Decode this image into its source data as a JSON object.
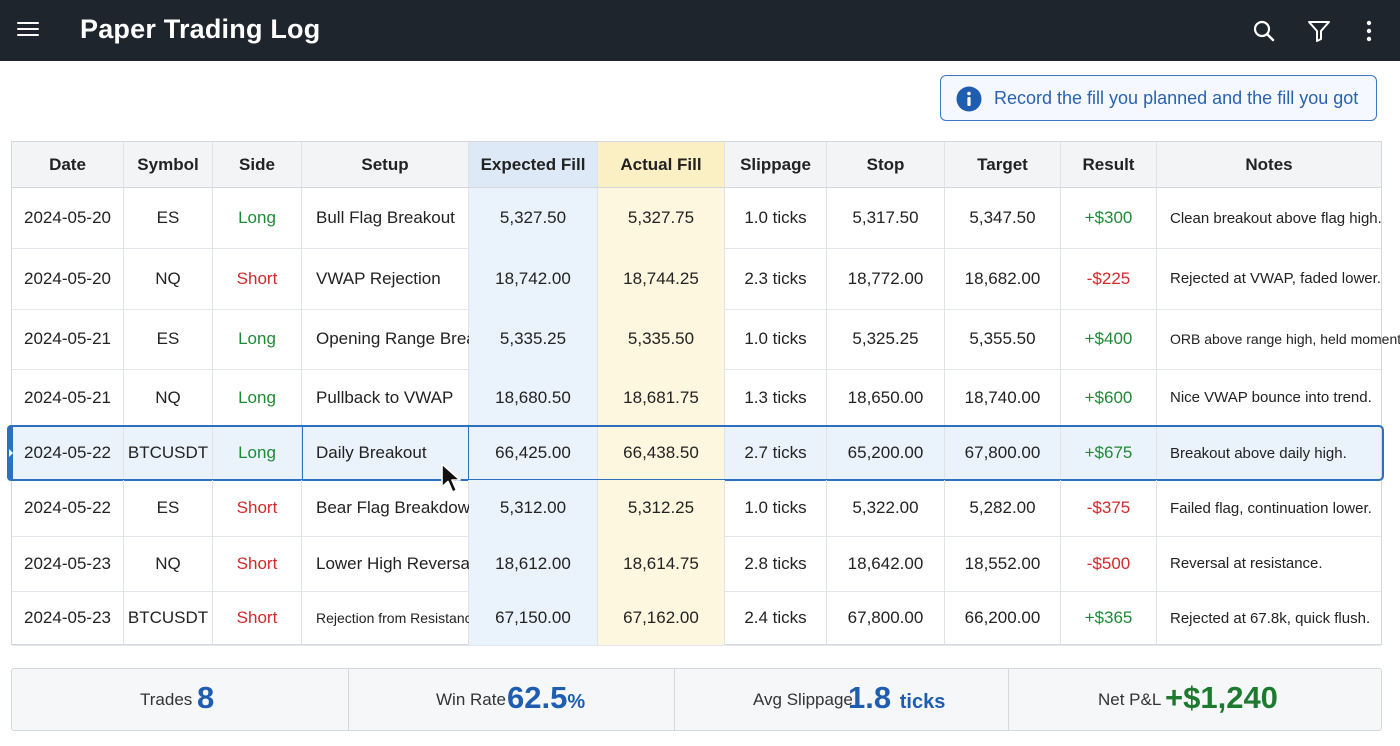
{
  "app": {
    "title": "Paper Trading Log"
  },
  "toolbar": {
    "icons": [
      "menu-icon",
      "search-icon",
      "filter-icon",
      "more-vert-icon"
    ]
  },
  "info_banner": {
    "icon": "info-icon",
    "text": "Record the fill you planned and the fill you got"
  },
  "table": {
    "columns": [
      "Date",
      "Symbol",
      "Side",
      "Setup",
      "Expected Fill",
      "Actual Fill",
      "Slippage",
      "Stop",
      "Target",
      "Result",
      "Notes"
    ],
    "selected_row": 4,
    "rows": [
      {
        "date": "2024-05-20",
        "symbol": "ES",
        "side": "Long",
        "setup": "Bull Flag Breakout",
        "expected": "5,327.50",
        "actual": "5,327.75",
        "slippage": "1.0 ticks",
        "stop": "5,317.50",
        "target": "5,347.50",
        "result": "+$300",
        "notes": "Clean breakout above flag high."
      },
      {
        "date": "2024-05-20",
        "symbol": "NQ",
        "side": "Short",
        "setup": "VWAP Rejection",
        "expected": "18,742.00",
        "actual": "18,744.25",
        "slippage": "2.3 ticks",
        "stop": "18,772.00",
        "target": "18,682.00",
        "result": "-$225",
        "notes": "Rejected at VWAP, faded lower."
      },
      {
        "date": "2024-05-21",
        "symbol": "ES",
        "side": "Long",
        "setup": "Opening Range Break",
        "expected": "5,335.25",
        "actual": "5,335.50",
        "slippage": "1.0 ticks",
        "stop": "5,325.25",
        "target": "5,355.50",
        "result": "+$400",
        "notes": "ORB above range high, held momentum."
      },
      {
        "date": "2024-05-21",
        "symbol": "NQ",
        "side": "Long",
        "setup": "Pullback to VWAP",
        "expected": "18,680.50",
        "actual": "18,681.75",
        "slippage": "1.3 ticks",
        "stop": "18,650.00",
        "target": "18,740.00",
        "result": "+$600",
        "notes": "Nice VWAP bounce into trend."
      },
      {
        "date": "2024-05-22",
        "symbol": "BTCUSDT",
        "side": "Long",
        "setup": "Daily Breakout",
        "expected": "66,425.00",
        "actual": "66,438.50",
        "slippage": "2.7 ticks",
        "stop": "65,200.00",
        "target": "67,800.00",
        "result": "+$675",
        "notes": "Breakout above daily high."
      },
      {
        "date": "2024-05-22",
        "symbol": "ES",
        "side": "Short",
        "setup": "Bear Flag Breakdown",
        "expected": "5,312.00",
        "actual": "5,312.25",
        "slippage": "1.0 ticks",
        "stop": "5,322.00",
        "target": "5,282.00",
        "result": "-$375",
        "notes": "Failed flag, continuation lower."
      },
      {
        "date": "2024-05-23",
        "symbol": "NQ",
        "side": "Short",
        "setup": "Lower High Reversal",
        "expected": "18,612.00",
        "actual": "18,614.75",
        "slippage": "2.8 ticks",
        "stop": "18,642.00",
        "target": "18,552.00",
        "result": "-$500",
        "notes": "Reversal at resistance."
      },
      {
        "date": "2024-05-23",
        "symbol": "BTCUSDT",
        "side": "Short",
        "setup": "Rejection from Resistance",
        "expected": "67,150.00",
        "actual": "67,162.00",
        "slippage": "2.4 ticks",
        "stop": "67,800.00",
        "target": "66,200.00",
        "result": "+$365",
        "notes": "Rejected at 67.8k, quick flush."
      }
    ]
  },
  "summary": {
    "trades_label": "Trades",
    "trades_value": "8",
    "winrate_label": "Win Rate",
    "winrate_value": "62.5",
    "winrate_unit": "%",
    "slippage_label": "Avg Slippage",
    "slippage_value": "1.8",
    "slippage_unit": "ticks",
    "pnl_label": "Net P&L",
    "pnl_value": "+$1,240"
  },
  "colors": {
    "long": "#1e8a36",
    "short": "#d12a2a",
    "accent": "#2e6fc0",
    "topbar": "#1f252c"
  }
}
